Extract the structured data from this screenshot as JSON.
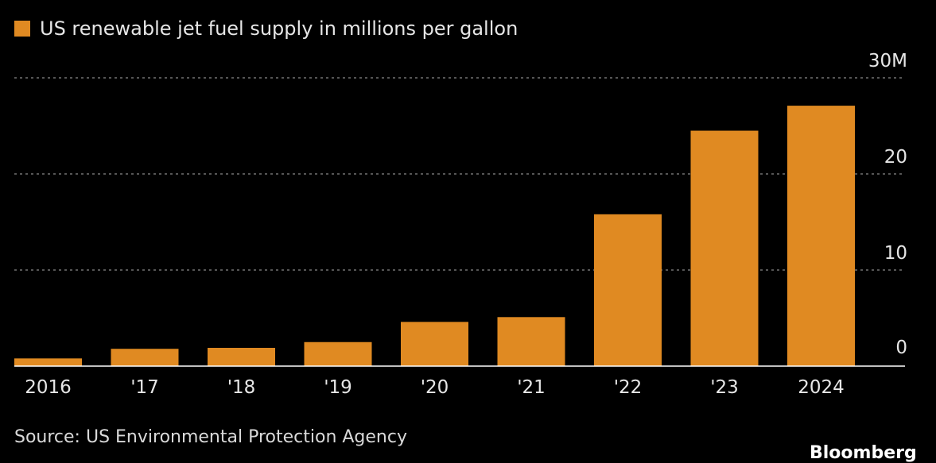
{
  "colors": {
    "bar": "#e08a22",
    "background": "#000000",
    "grid": "#8a8a8a",
    "text": "#e6e6e6"
  },
  "chart_data": {
    "type": "bar",
    "categories": [
      "2016",
      "'17",
      "'18",
      "'19",
      "'20",
      "'21",
      "'22",
      "'23",
      "2024"
    ],
    "series": [
      {
        "name": "US renewable jet fuel supply in millions per gallon",
        "values": [
          0.8,
          1.8,
          1.9,
          2.5,
          4.6,
          5.1,
          15.8,
          24.5,
          27.1
        ]
      }
    ],
    "ylim": [
      0,
      30
    ],
    "y_ticks": [
      "0",
      "10",
      "20",
      "30M"
    ],
    "grid": true,
    "legend": "top-left"
  },
  "source": "Source: US Environmental Protection Agency",
  "brand": "Bloomberg"
}
